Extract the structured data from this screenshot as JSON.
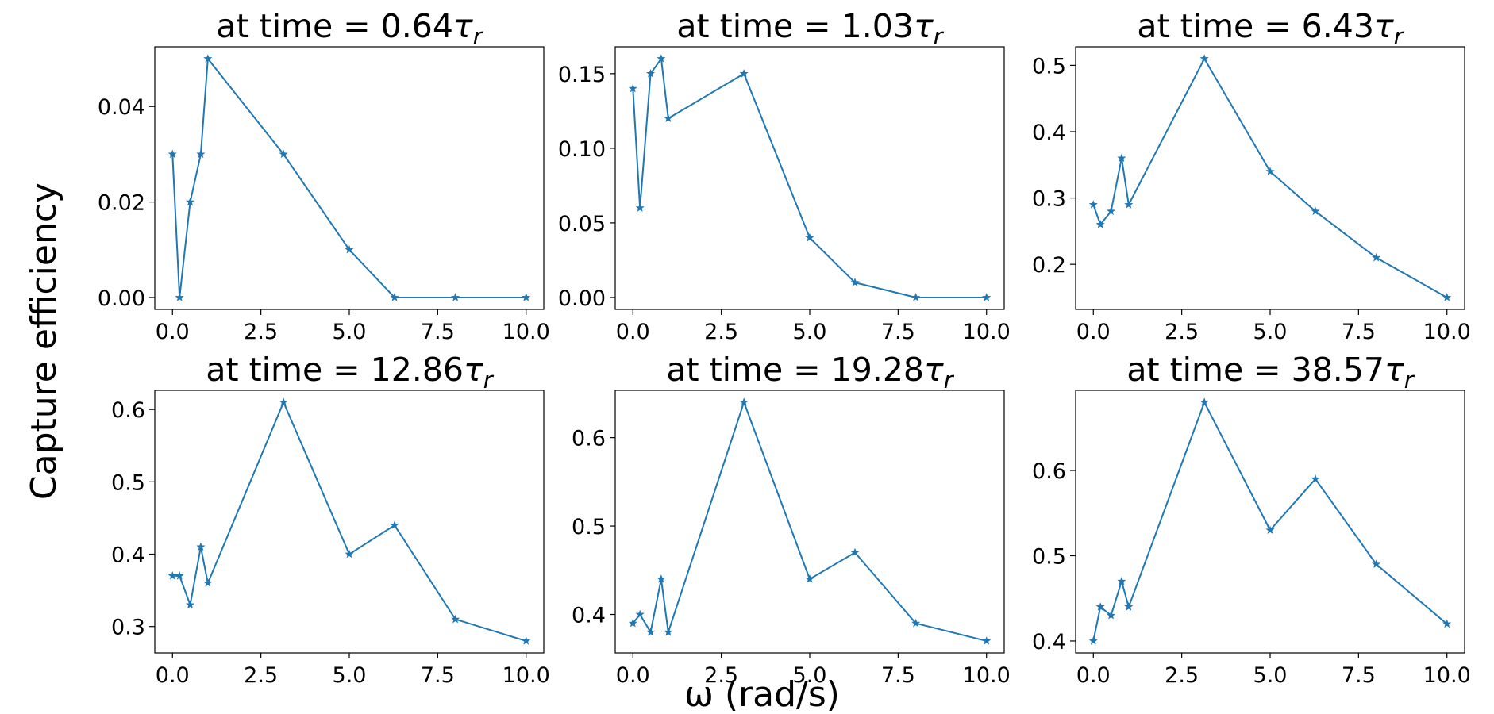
{
  "figure": {
    "ylabel": "Capture efficiency",
    "xlabel": "ω (rad/s)"
  },
  "colors": {
    "series": "#1f77b4",
    "axes": "#000000",
    "background": "#ffffff"
  },
  "chart_data": [
    {
      "type": "line",
      "title": "at time = 0.64τr",
      "title_main": "at time = 0.64",
      "title_symbol": "τ",
      "title_sub": "r",
      "x": [
        0,
        0.2,
        0.5,
        0.8,
        1.0,
        3.14,
        5.0,
        6.28,
        8.0,
        10.0
      ],
      "y": [
        0.03,
        0.0,
        0.02,
        0.03,
        0.05,
        0.03,
        0.01,
        0.0,
        0.0,
        0.0
      ],
      "marker": "star",
      "xlim": [
        -0.5,
        10.5
      ],
      "ylim": [
        -0.0025,
        0.0525
      ],
      "xticks": [
        0,
        2.5,
        5,
        7.5,
        10
      ],
      "xtick_labels": [
        "0.0",
        "2.5",
        "5.0",
        "7.5",
        "10.0"
      ],
      "yticks": [
        0,
        0.02,
        0.04
      ],
      "ytick_labels": [
        "0.00",
        "0.02",
        "0.04"
      ]
    },
    {
      "type": "line",
      "title": "at time = 1.03τr",
      "title_main": "at time = 1.03",
      "title_symbol": "τ",
      "title_sub": "r",
      "x": [
        0,
        0.2,
        0.5,
        0.8,
        1.0,
        3.14,
        5.0,
        6.28,
        8.0,
        10.0
      ],
      "y": [
        0.14,
        0.06,
        0.15,
        0.16,
        0.12,
        0.15,
        0.04,
        0.01,
        0.0,
        0.0
      ],
      "marker": "star",
      "xlim": [
        -0.5,
        10.5
      ],
      "ylim": [
        -0.008,
        0.168
      ],
      "xticks": [
        0,
        2.5,
        5,
        7.5,
        10
      ],
      "xtick_labels": [
        "0.0",
        "2.5",
        "5.0",
        "7.5",
        "10.0"
      ],
      "yticks": [
        0,
        0.05,
        0.1,
        0.15
      ],
      "ytick_labels": [
        "0.00",
        "0.05",
        "0.10",
        "0.15"
      ]
    },
    {
      "type": "line",
      "title": "at time = 6.43τr",
      "title_main": "at time = 6.43",
      "title_symbol": "τ",
      "title_sub": "r",
      "x": [
        0,
        0.2,
        0.5,
        0.8,
        1.0,
        3.14,
        5.0,
        6.28,
        8.0,
        10.0
      ],
      "y": [
        0.29,
        0.26,
        0.28,
        0.36,
        0.29,
        0.51,
        0.34,
        0.28,
        0.21,
        0.15
      ],
      "marker": "star",
      "xlim": [
        -0.5,
        10.5
      ],
      "ylim": [
        0.132,
        0.528
      ],
      "xticks": [
        0,
        2.5,
        5,
        7.5,
        10
      ],
      "xtick_labels": [
        "0.0",
        "2.5",
        "5.0",
        "7.5",
        "10.0"
      ],
      "yticks": [
        0.2,
        0.3,
        0.4,
        0.5
      ],
      "ytick_labels": [
        "0.2",
        "0.3",
        "0.4",
        "0.5"
      ]
    },
    {
      "type": "line",
      "title": "at time = 12.86τr",
      "title_main": "at time = 12.86",
      "title_symbol": "τ",
      "title_sub": "r",
      "x": [
        0,
        0.2,
        0.5,
        0.8,
        1.0,
        3.14,
        5.0,
        6.28,
        8.0,
        10.0
      ],
      "y": [
        0.37,
        0.37,
        0.33,
        0.41,
        0.36,
        0.61,
        0.4,
        0.44,
        0.31,
        0.28
      ],
      "marker": "star",
      "xlim": [
        -0.5,
        10.5
      ],
      "ylim": [
        0.2635,
        0.6265
      ],
      "xticks": [
        0,
        2.5,
        5,
        7.5,
        10
      ],
      "xtick_labels": [
        "0.0",
        "2.5",
        "5.0",
        "7.5",
        "10.0"
      ],
      "yticks": [
        0.3,
        0.4,
        0.5,
        0.6
      ],
      "ytick_labels": [
        "0.3",
        "0.4",
        "0.5",
        "0.6"
      ]
    },
    {
      "type": "line",
      "title": "at time = 19.28τr",
      "title_main": "at time = 19.28",
      "title_symbol": "τ",
      "title_sub": "r",
      "x": [
        0,
        0.2,
        0.5,
        0.8,
        1.0,
        3.14,
        5.0,
        6.28,
        8.0,
        10.0
      ],
      "y": [
        0.39,
        0.4,
        0.38,
        0.44,
        0.38,
        0.64,
        0.44,
        0.47,
        0.39,
        0.37
      ],
      "marker": "star",
      "xlim": [
        -0.5,
        10.5
      ],
      "ylim": [
        0.3565,
        0.6535
      ],
      "xticks": [
        0,
        2.5,
        5,
        7.5,
        10
      ],
      "xtick_labels": [
        "0.0",
        "2.5",
        "5.0",
        "7.5",
        "10.0"
      ],
      "yticks": [
        0.4,
        0.5,
        0.6
      ],
      "ytick_labels": [
        "0.4",
        "0.5",
        "0.6"
      ]
    },
    {
      "type": "line",
      "title": "at time = 38.57τr",
      "title_main": "at time = 38.57",
      "title_symbol": "τ",
      "title_sub": "r",
      "x": [
        0,
        0.2,
        0.5,
        0.8,
        1.0,
        3.14,
        5.0,
        6.28,
        8.0,
        10.0
      ],
      "y": [
        0.4,
        0.44,
        0.43,
        0.47,
        0.44,
        0.68,
        0.53,
        0.59,
        0.49,
        0.42
      ],
      "marker": "star",
      "xlim": [
        -0.5,
        10.5
      ],
      "ylim": [
        0.386,
        0.694
      ],
      "xticks": [
        0,
        2.5,
        5,
        7.5,
        10
      ],
      "xtick_labels": [
        "0.0",
        "2.5",
        "5.0",
        "7.5",
        "10.0"
      ],
      "yticks": [
        0.4,
        0.5,
        0.6
      ],
      "ytick_labels": [
        "0.4",
        "0.5",
        "0.6"
      ]
    }
  ]
}
